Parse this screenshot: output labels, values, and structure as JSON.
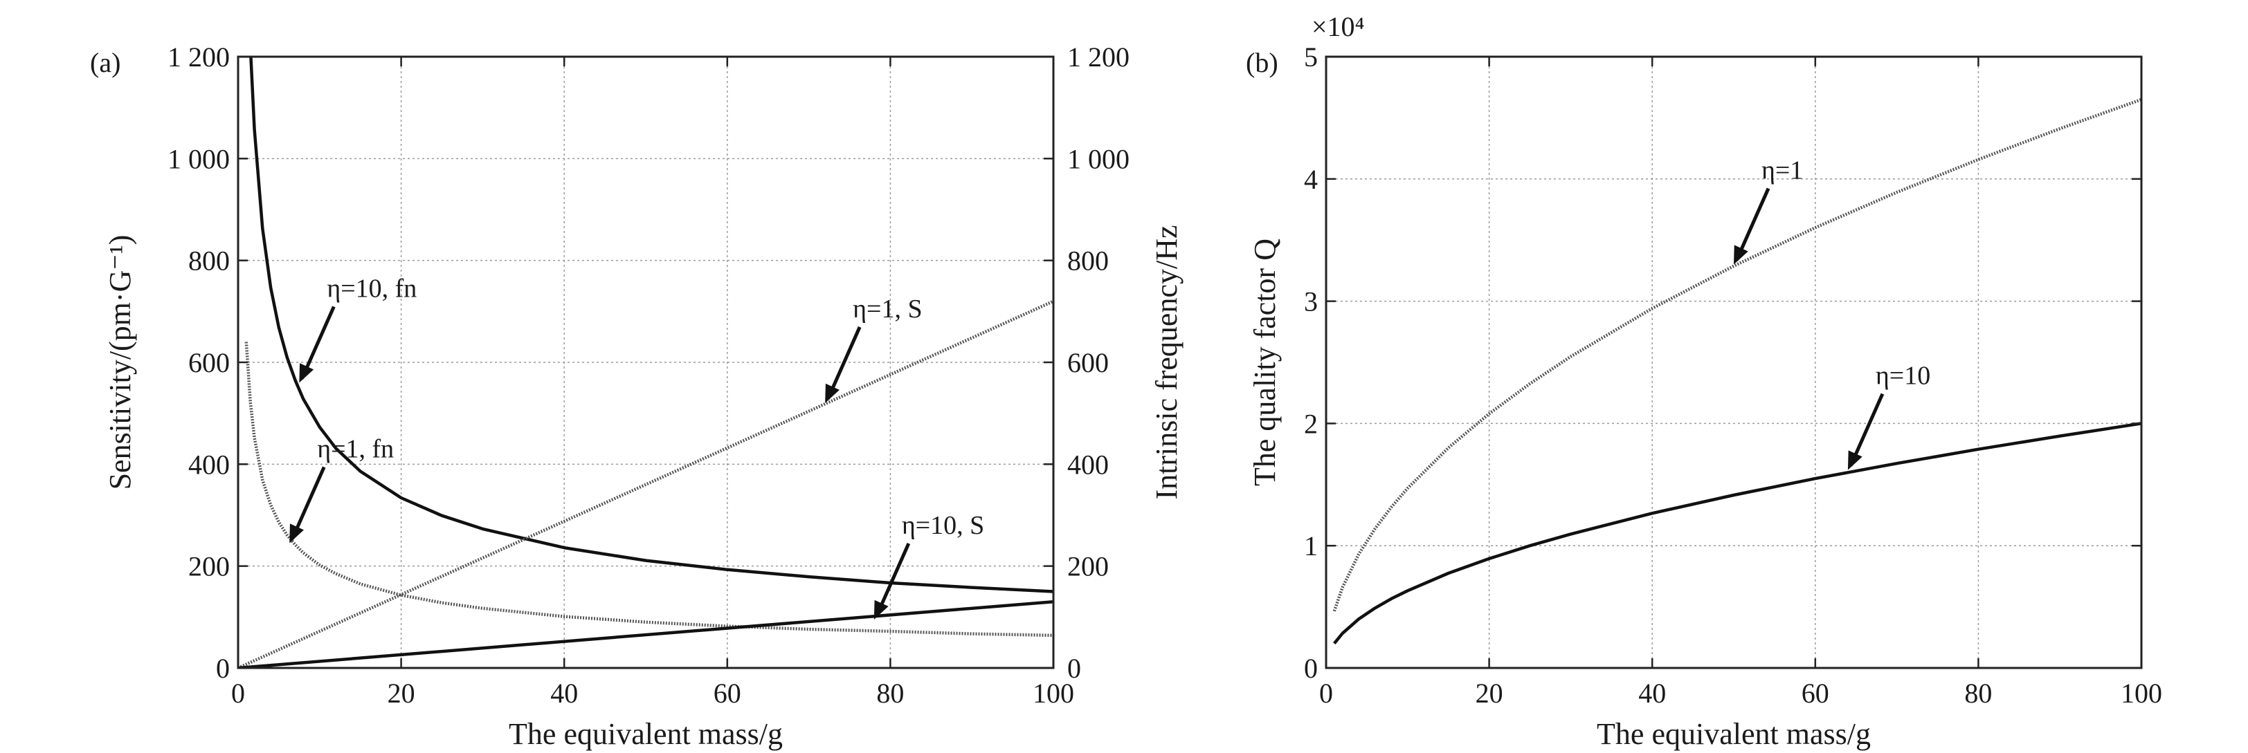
{
  "chart_data": [
    {
      "type": "line",
      "panel_label": "(a)",
      "xlabel": "The equivalent mass/g",
      "ylabel": "Sensitivity/(pm·G⁻¹)",
      "y2label": "Intrinsic frequency/Hz",
      "xlim": [
        0,
        100
      ],
      "ylim": [
        0,
        1200
      ],
      "y2lim": [
        0,
        1200
      ],
      "grid": true,
      "x_ticks": [
        "0",
        "20",
        "40",
        "60",
        "80",
        "100"
      ],
      "y_ticks": [
        "0",
        "200",
        "400",
        "600",
        "800",
        "1 000",
        "1 200"
      ],
      "y2_ticks": [
        "0",
        "200",
        "400",
        "600",
        "800",
        "1 000",
        "1 200"
      ],
      "series": [
        {
          "label": "η=10, fn",
          "axis": "right",
          "style": "solid",
          "x": [
            1.5,
            2,
            3,
            4,
            5,
            6,
            7,
            8,
            10,
            12,
            15,
            20,
            25,
            30,
            40,
            50,
            60,
            70,
            80,
            90,
            100
          ],
          "y": [
            1220,
            1057,
            863,
            747,
            668,
            610,
            565,
            528,
            473,
            431,
            386,
            334,
            299,
            273,
            236,
            211,
            193,
            179,
            167,
            158,
            150
          ]
        },
        {
          "label": "η=1, fn",
          "axis": "right",
          "style": "dotted",
          "x": [
            1,
            1.5,
            2,
            3,
            4,
            5,
            6,
            7,
            8,
            10,
            12,
            15,
            20,
            25,
            30,
            40,
            50,
            60,
            70,
            80,
            90,
            100
          ],
          "y": [
            640,
            522,
            452,
            369,
            320,
            286,
            261,
            242,
            226,
            202,
            185,
            165,
            143,
            128,
            117,
            101,
            90,
            82,
            76,
            72,
            67,
            64
          ]
        },
        {
          "label": "η=1, S",
          "axis": "left",
          "style": "dotted",
          "x": [
            0,
            100
          ],
          "y": [
            0,
            720
          ]
        },
        {
          "label": "η=10, S",
          "axis": "left",
          "style": "solid",
          "x": [
            0,
            100
          ],
          "y": [
            0,
            130
          ]
        }
      ],
      "annotations": [
        {
          "text": "η=10, fn",
          "target_x": 7.5,
          "target_y": 560
        },
        {
          "text": "η=1, S",
          "target_x": 72,
          "target_y": 520
        },
        {
          "text": "η=1, fn",
          "target_x": 6.3,
          "target_y": 245
        },
        {
          "text": "η=10, S",
          "target_x": 78,
          "target_y": 95
        }
      ]
    },
    {
      "type": "line",
      "panel_label": "(b)",
      "xlabel": "The equivalent mass/g",
      "ylabel": "The quality factor Q",
      "multiplier": "×10⁴",
      "xlim": [
        0,
        100
      ],
      "ylim": [
        0,
        50000
      ],
      "grid": true,
      "x_ticks": [
        "0",
        "20",
        "40",
        "60",
        "80",
        "100"
      ],
      "y_ticks": [
        "0",
        "1",
        "2",
        "3",
        "4",
        "5"
      ],
      "series": [
        {
          "label": "η=1",
          "style": "dotted",
          "x": [
            1,
            2,
            4,
            6,
            8,
            10,
            15,
            20,
            25,
            30,
            40,
            50,
            60,
            70,
            80,
            90,
            100
          ],
          "y": [
            4650,
            6580,
            9300,
            11390,
            13150,
            14700,
            18010,
            20800,
            23250,
            25470,
            29410,
            32880,
            36020,
            38910,
            41590,
            44110,
            46500
          ]
        },
        {
          "label": "η=10",
          "style": "solid",
          "x": [
            1,
            2,
            4,
            6,
            8,
            10,
            15,
            20,
            25,
            30,
            40,
            50,
            60,
            70,
            80,
            90,
            100
          ],
          "y": [
            2000,
            2830,
            4000,
            4900,
            5660,
            6320,
            7750,
            8940,
            10000,
            10950,
            12650,
            14140,
            15490,
            16730,
            17890,
            18970,
            20000
          ]
        }
      ],
      "annotations": [
        {
          "text": "η=1",
          "target_x": 50,
          "target_y": 33000
        },
        {
          "text": "η=10",
          "target_x": 64,
          "target_y": 16200
        }
      ]
    }
  ]
}
